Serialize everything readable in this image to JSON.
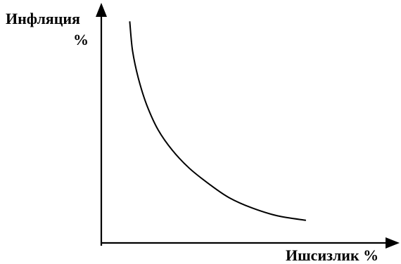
{
  "chart_data": {
    "type": "line",
    "title": "",
    "ylabel": "Инфляция",
    "ylabel_unit": "%",
    "xlabel": "Ишсизлик %",
    "grid": false,
    "legend": "none",
    "line_color": "#000000",
    "series": [
      {
        "points": [
          {
            "x": 0.1,
            "y": 0.98
          },
          {
            "x": 0.11,
            "y": 0.85
          },
          {
            "x": 0.13,
            "y": 0.73
          },
          {
            "x": 0.16,
            "y": 0.61
          },
          {
            "x": 0.2,
            "y": 0.5
          },
          {
            "x": 0.25,
            "y": 0.41
          },
          {
            "x": 0.31,
            "y": 0.33
          },
          {
            "x": 0.38,
            "y": 0.26
          },
          {
            "x": 0.45,
            "y": 0.2
          },
          {
            "x": 0.53,
            "y": 0.155
          },
          {
            "x": 0.62,
            "y": 0.12
          },
          {
            "x": 0.72,
            "y": 0.1
          }
        ]
      }
    ]
  }
}
